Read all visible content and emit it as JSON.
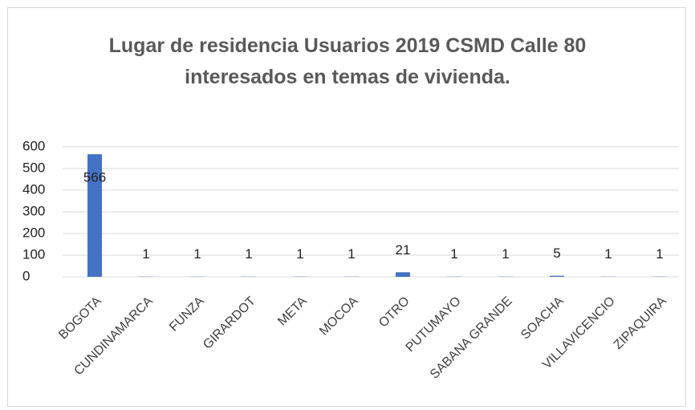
{
  "chart_data": {
    "type": "bar",
    "title": "Lugar de residencia Usuarios 2019 CSMD Calle 80 interesados en temas de vivienda.",
    "categories": [
      "BOGOTA",
      "CUNDINAMARCA",
      "FUNZA",
      "GIRARDOT",
      "META",
      "MOCOA",
      "OTRO",
      "PUTUMAYO",
      "SABANA GRANDE",
      "SOACHA",
      "VILLAVICENCIO",
      "ZIPAQUIRA"
    ],
    "values": [
      566,
      1,
      1,
      1,
      1,
      1,
      21,
      1,
      1,
      5,
      1,
      1
    ],
    "color": "#4472c4",
    "ylim": [
      0,
      600
    ],
    "yticks": [
      0,
      100,
      200,
      300,
      400,
      500,
      600
    ],
    "grid": true
  }
}
